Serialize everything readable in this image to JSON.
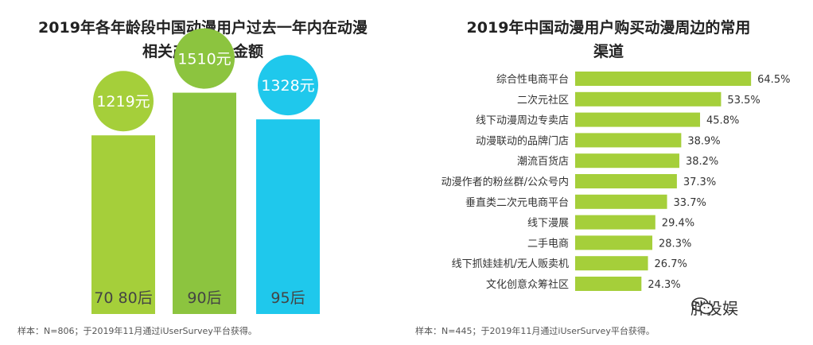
{
  "left": {
    "title_line1": "2019年各年龄段中国动漫用户过去一年内在动漫",
    "title_line2": "相关产品消费金额",
    "source": "样本：N=806；于2019年11月通过iUserSurvey平台获得。"
  },
  "right": {
    "title_line1": "2019年中国动漫用户购买动漫周边的常用",
    "title_line2": "渠道",
    "source": "样本：N=445；于2019年11月通过iUserSurvey平台获得。"
  },
  "watermark": {
    "text": "胖投娱",
    "icon": "wechat-icon"
  },
  "colors": {
    "bar_7080": "#a5cf3a",
    "bar_90": "#8cc43f",
    "bar_95": "#1fc8ec",
    "hbar": "#a5cf3a",
    "bubble_7080": "#a5cf3a",
    "bubble_90": "#8cc43f",
    "bubble_95": "#1fc8ec"
  },
  "chart_data": [
    {
      "type": "bar",
      "title": "2019年各年龄段中国动漫用户过去一年内在动漫相关产品消费金额",
      "categories": [
        "70 80后",
        "90后",
        "95后"
      ],
      "values": [
        1219,
        1510,
        1328
      ],
      "value_labels": [
        "1219元",
        "1510元",
        "1328元"
      ],
      "unit": "元",
      "ylim": [
        0,
        1600
      ]
    },
    {
      "type": "bar",
      "orientation": "horizontal",
      "title": "2019年中国动漫用户购买动漫周边的常用渠道",
      "categories": [
        "综合性电商平台",
        "二次元社区",
        "线下动漫周边专卖店",
        "动漫联动的品牌门店",
        "潮流百货店",
        "动漫作者的粉丝群/公众号内",
        "垂直类二次元电商平台",
        "线下漫展",
        "二手电商",
        "线下抓娃娃机/无人贩卖机",
        "文化创意众筹社区"
      ],
      "values": [
        64.5,
        53.5,
        45.8,
        38.9,
        38.2,
        37.3,
        33.7,
        29.4,
        28.3,
        26.7,
        24.3
      ],
      "value_labels": [
        "64.5%",
        "53.5%",
        "45.8%",
        "38.9%",
        "38.2%",
        "37.3%",
        "33.7%",
        "29.4%",
        "28.3%",
        "26.7%",
        "24.3%"
      ],
      "unit": "%",
      "xlim": [
        0,
        70
      ]
    }
  ]
}
